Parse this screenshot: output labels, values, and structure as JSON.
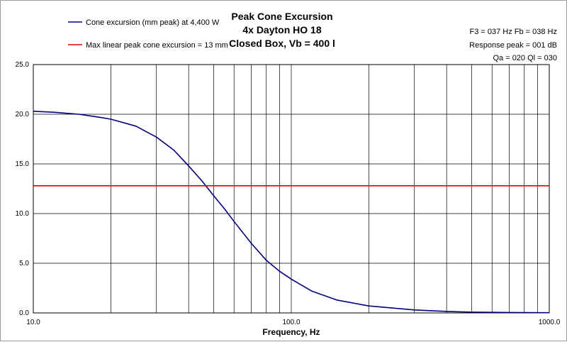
{
  "chart_data": {
    "type": "line",
    "title_lines": [
      "Peak Cone Excursion",
      "4x Dayton HO 18",
      "Closed Box, Vb = 400 l"
    ],
    "xlabel": "Frequency, Hz",
    "ylabel": "",
    "x_scale": "log",
    "xlim": [
      10,
      1000
    ],
    "ylim": [
      0,
      25
    ],
    "grid": true,
    "legend_position": "top-left",
    "x_tick_labels": [
      "10.0",
      "100.0",
      "1000.0"
    ],
    "x_tick_values": [
      10,
      100,
      1000
    ],
    "y_tick_labels": [
      "0.0",
      "5.0",
      "10.0",
      "15.0",
      "20.0",
      "25.0"
    ],
    "y_tick_values": [
      0,
      5,
      10,
      15,
      20,
      25
    ],
    "info_lines": [
      "F3 = 037 Hz  Fb = 038 Hz",
      "Response peak = 001 dB",
      "Qa = 020  Ql = 030"
    ],
    "series": [
      {
        "name": "Cone excursion (mm peak) at 4,400 W",
        "color": "#000080",
        "x": [
          10,
          12,
          15,
          18,
          20,
          25,
          30,
          35,
          40,
          45,
          50,
          55,
          60,
          70,
          80,
          90,
          100,
          120,
          150,
          200,
          300,
          400,
          500,
          700,
          1000
        ],
        "y": [
          20.3,
          20.2,
          20.0,
          19.7,
          19.5,
          18.8,
          17.7,
          16.4,
          14.8,
          13.3,
          11.8,
          10.5,
          9.2,
          7.0,
          5.3,
          4.2,
          3.4,
          2.2,
          1.3,
          0.7,
          0.3,
          0.15,
          0.08,
          0.04,
          0.02
        ]
      },
      {
        "name": "Max linear peak cone excursion = 13 mm",
        "color": "#e00000",
        "x": [
          10,
          1000
        ],
        "y": [
          12.8,
          12.8
        ]
      }
    ]
  }
}
